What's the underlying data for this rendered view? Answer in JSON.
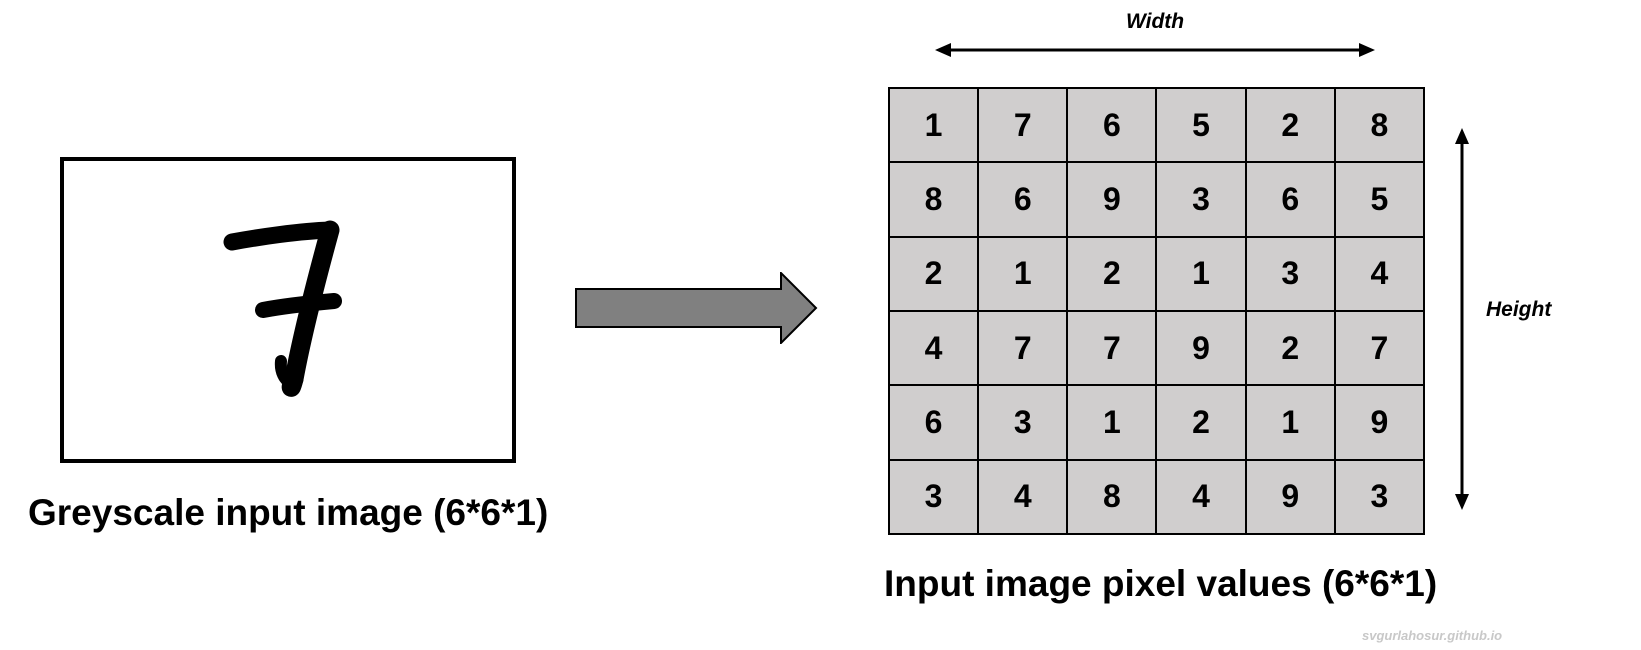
{
  "left_panel": {
    "digit": "7",
    "caption": "Greyscale input image (6*6*1)"
  },
  "right_panel": {
    "caption": "Input image pixel values (6*6*1)",
    "width_label": "Width",
    "height_label": "Height",
    "grid": [
      [
        "1",
        "7",
        "6",
        "5",
        "2",
        "8"
      ],
      [
        "8",
        "6",
        "9",
        "3",
        "6",
        "5"
      ],
      [
        "2",
        "1",
        "2",
        "1",
        "3",
        "4"
      ],
      [
        "4",
        "7",
        "7",
        "9",
        "2",
        "7"
      ],
      [
        "6",
        "3",
        "1",
        "2",
        "1",
        "9"
      ],
      [
        "3",
        "4",
        "8",
        "4",
        "9",
        "3"
      ]
    ]
  },
  "watermark": "svgurlahosur.github.io",
  "colors": {
    "cell_fill": "#d0cece",
    "arrow_fill": "#808080",
    "line": "#000000",
    "watermark": "#c8c8c8"
  },
  "icons": {
    "process_arrow": "right-arrow-icon",
    "width_arrow": "double-horizontal-arrow-icon",
    "height_arrow": "double-vertical-arrow-icon"
  }
}
